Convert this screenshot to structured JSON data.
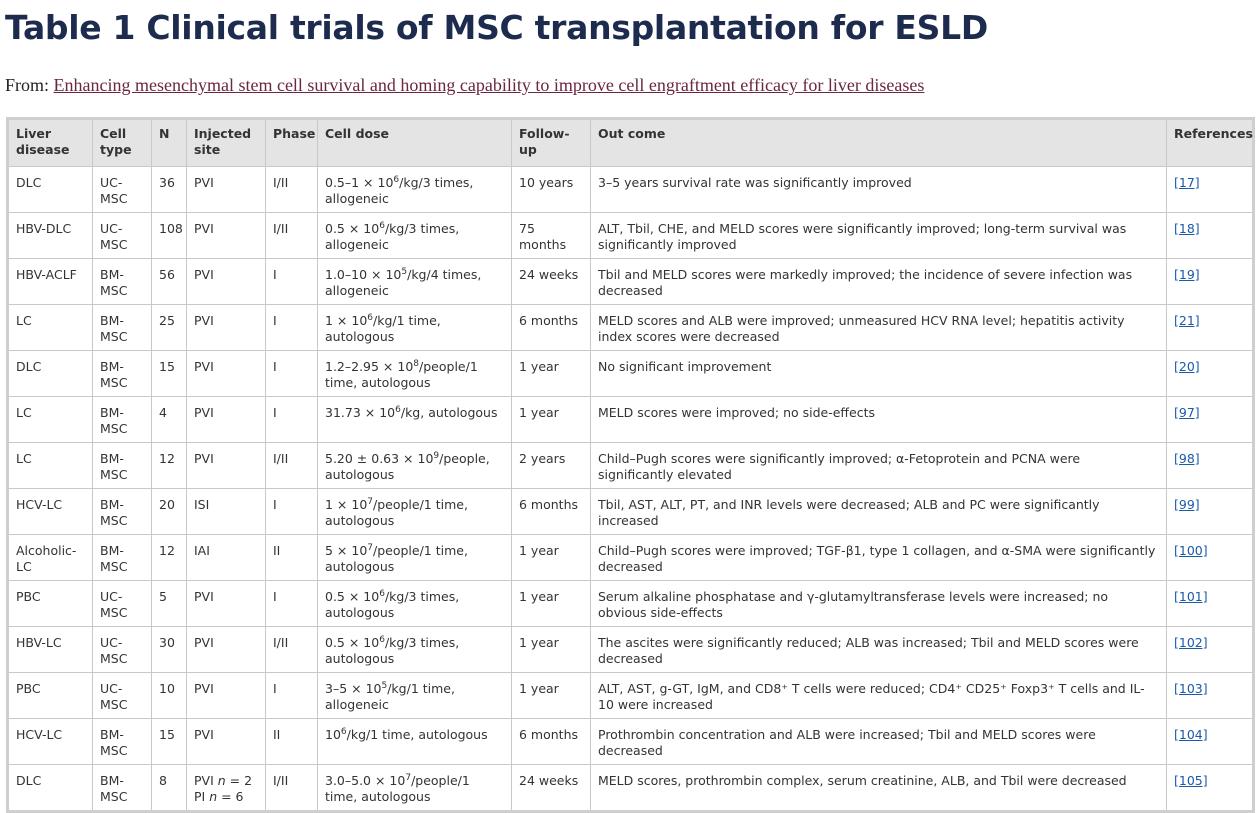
{
  "header": {
    "title": "Table 1 Clinical trials of MSC transplantation for ESLD",
    "from_label": "From:",
    "from_link": "Enhancing mesenchymal stem cell survival and homing capability to improve cell engraftment efficacy for liver diseases"
  },
  "table": {
    "columns": [
      "Liver disease",
      "Cell type",
      "N",
      "Injected site",
      "Phase",
      "Cell dose",
      "Follow-up",
      "Out come",
      "References"
    ],
    "rows": [
      [
        "DLC",
        "UC-MSC",
        36,
        "PVI",
        "I/II",
        [
          "0.5–1 × 10",
          {
            "sup": "6"
          },
          "/kg/3 times, allogeneic"
        ],
        "10 years",
        "3–5 years survival rate was significantly improved",
        "[17]"
      ],
      [
        "HBV-DLC",
        "UC-MSC",
        108,
        "PVI",
        "I/II",
        [
          "0.5 × 10",
          {
            "sup": "6"
          },
          "/kg/3 times, allogeneic"
        ],
        "75 months",
        "ALT, Tbil, CHE, and MELD scores were significantly improved; long-term survival was significantly improved",
        "[18]"
      ],
      [
        "HBV-ACLF",
        "BM-MSC",
        56,
        "PVI",
        "I",
        [
          "1.0–10 × 10",
          {
            "sup": "5"
          },
          "/kg/4 times, allogeneic"
        ],
        "24 weeks",
        "Tbil and MELD scores were markedly improved; the incidence of severe infection was decreased",
        "[19]"
      ],
      [
        "LC",
        "BM-MSC",
        25,
        "PVI",
        "I",
        [
          "1 × 10",
          {
            "sup": "6"
          },
          "/kg/1 time, autologous"
        ],
        "6 months",
        "MELD scores and ALB were improved; unmeasured HCV RNA level; hepatitis activity index scores were decreased",
        "[21]"
      ],
      [
        "DLC",
        "BM-MSC",
        15,
        "PVI",
        "I",
        [
          "1.2–2.95 × 10",
          {
            "sup": "8"
          },
          "/people/1 time, autologous"
        ],
        "1 year",
        "No significant improvement",
        "[20]"
      ],
      [
        "LC",
        "BM-MSC",
        4,
        "PVI",
        "I",
        [
          "31.73 × 10",
          {
            "sup": "6"
          },
          "/kg, autologous"
        ],
        "1 year",
        "MELD scores were improved; no side-effects",
        "[97]"
      ],
      [
        "LC",
        "BM-MSC",
        12,
        "PVI",
        "I/II",
        [
          "5.20 ± 0.63 × 10",
          {
            "sup": "9"
          },
          "/people, autologous"
        ],
        "2 years",
        "Child–Pugh scores were significantly improved; α-Fetoprotein and PCNA were significantly elevated",
        "[98]"
      ],
      [
        "HCV-LC",
        "BM-MSC",
        20,
        "ISI",
        "I",
        [
          "1 × 10",
          {
            "sup": "7"
          },
          "/people/1 time, autologous"
        ],
        "6 months",
        "Tbil, AST, ALT, PT, and INR levels were decreased; ALB and PC were significantly increased",
        "[99]"
      ],
      [
        "Alcoholic-LC",
        "BM-MSC",
        12,
        "IAI",
        "II",
        [
          "5 × 10",
          {
            "sup": "7"
          },
          "/people/1 time, autologous"
        ],
        "1 year",
        "Child–Pugh scores were improved; TGF-β1, type 1 collagen, and α-SMA were significantly decreased",
        "[100]"
      ],
      [
        "PBC",
        "UC-MSC",
        5,
        "PVI",
        "I",
        [
          "0.5 × 10",
          {
            "sup": "6"
          },
          "/kg/3 times, autologous"
        ],
        "1 year",
        "Serum alkaline phosphatase and γ-glutamyltransferase levels were increased; no obvious side-effects",
        "[101]"
      ],
      [
        "HBV-LC",
        "UC-MSC",
        30,
        "PVI",
        "I/II",
        [
          "0.5 × 10",
          {
            "sup": "6"
          },
          "/kg/3 times, autologous"
        ],
        "1 year",
        "The ascites were significantly reduced; ALB was increased; Tbil and MELD scores were decreased",
        "[102]"
      ],
      [
        "PBC",
        "UC-MSC",
        10,
        "PVI",
        "I",
        [
          "3–5 × 10",
          {
            "sup": "5"
          },
          "/kg/1 time, allogeneic"
        ],
        "1 year",
        "ALT, AST, g-GT, IgM, and CD8⁺ T cells were reduced; CD4⁺ CD25⁺ Foxp3⁺ T cells and IL-10 were increased",
        "[103]"
      ],
      [
        "HCV-LC",
        "BM-MSC",
        15,
        "PVI",
        "II",
        [
          "10",
          {
            "sup": "6"
          },
          "/kg/1 time, autologous"
        ],
        "6 months",
        "Prothrombin concentration and ALB were increased; Tbil and MELD scores were decreased",
        "[104]"
      ],
      [
        "DLC",
        "BM-MSC",
        8,
        [
          [
            "PVI ",
            {
              "i": "n"
            },
            " = 2"
          ],
          [
            "PI ",
            {
              "i": "n"
            },
            " = 6"
          ]
        ],
        "I/II",
        [
          "3.0–5.0 × 10",
          {
            "sup": "7"
          },
          "/people/1 time, autologous"
        ],
        "24 weeks",
        "MELD scores, prothrombin complex, serum creatinine, ALB, and Tbil were decreased",
        "[105]"
      ]
    ]
  }
}
